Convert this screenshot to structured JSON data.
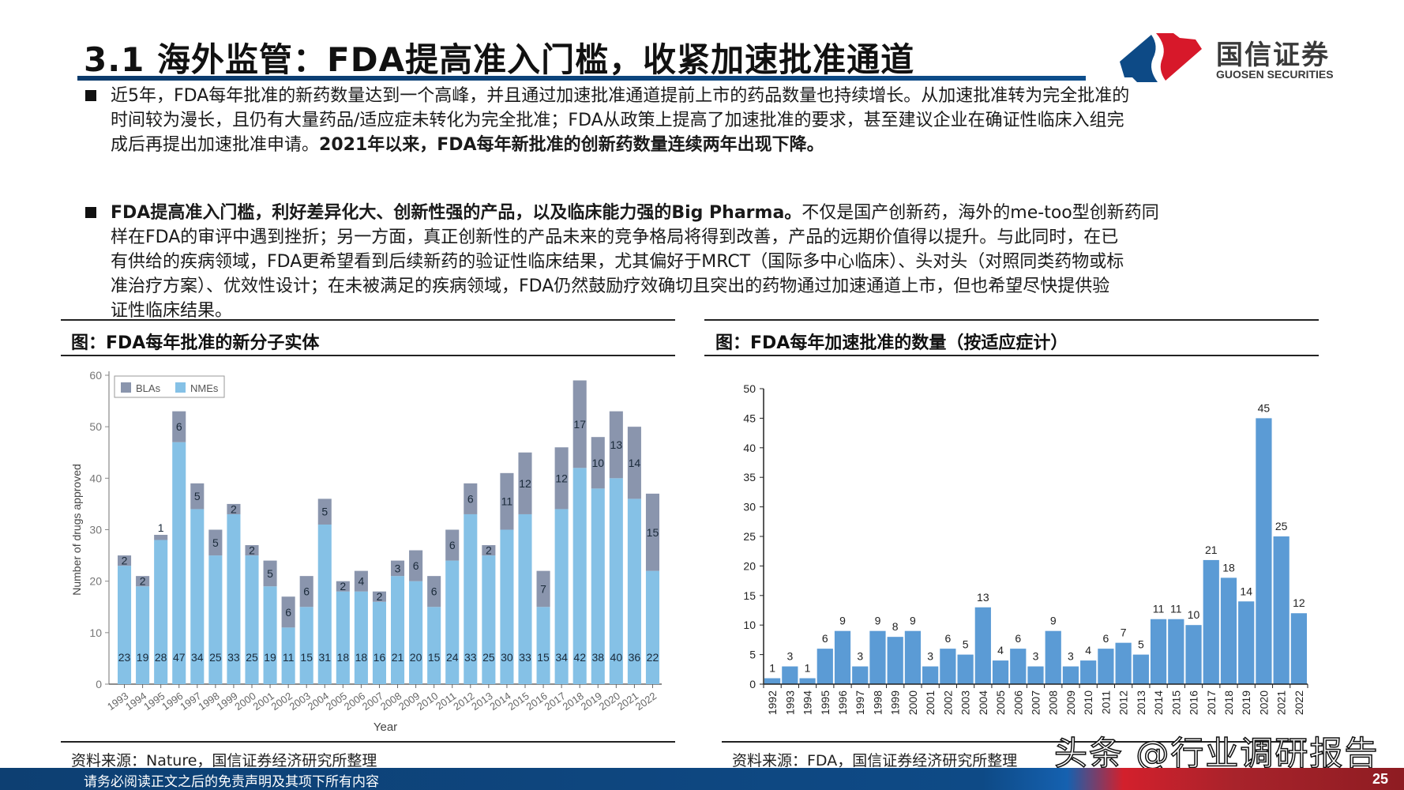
{
  "header": {
    "title": "3.1 海外监管：FDA提高准入门槛，收紧加速批准通道",
    "logo_cn": "国信证券",
    "logo_en": "GUOSEN SECURITIES"
  },
  "paragraphs": [
    {
      "lines": [
        "近5年，FDA每年批准的新药数量达到一个高峰，并且通过加速批准通道提前上市的药品数量也持续增长。从加速批准转为完全批准的",
        "时间较为漫长，且仍有大量药品/适应症未转化为完全批准；FDA从政策上提高了加速批准的要求，甚至建议企业在确证性临床入组完",
        "成后再提出加速批准申请。"
      ],
      "bold_tail": "2021年以来，FDA每年新批准的创新药数量连续两年出现下降。"
    },
    {
      "bold_head": "FDA提高准入门槛，利好差异化大、创新性强的产品，以及临床能力强的Big Pharma。",
      "lines": [
        "不仅是国产创新药，海外的me-too型创新药同",
        "样在FDA的审评中遇到挫折；另一方面，真正创新性的产品未来的竞争格局将得到改善，产品的远期价值得以提升。与此同时，在已",
        "有供给的疾病领域，FDA更希望看到后续新药的验证性临床结果，尤其偏好于MRCT（国际多中心临床）、头对头（对照同类药物或标",
        "准治疗方案）、优效性设计；在未被满足的疾病领域，FDA仍然鼓励疗效确切且突出的药物通过加速通道上市，但也希望尽快提供验",
        "证性临床结果。"
      ]
    }
  ],
  "figures": {
    "left": {
      "title": "图：FDA每年批准的新分子实体",
      "source": "资料来源：Nature，国信证券经济研究所整理"
    },
    "right": {
      "title": "图：FDA每年加速批准的数量（按适应症计）",
      "source": "资料来源：FDA，国信证券经济研究所整理"
    }
  },
  "chart_data": [
    {
      "type": "bar",
      "stacked": true,
      "title": "图：FDA每年批准的新分子实体",
      "xlabel": "Year",
      "ylabel": "Number of drugs approved",
      "ylim": [
        0,
        60
      ],
      "yticks": [
        0,
        10,
        20,
        30,
        40,
        50,
        60
      ],
      "legend": [
        "BLAs",
        "NMEs"
      ],
      "legend_position": "top-left",
      "colors": {
        "BLAs": "#8a95ad",
        "NMEs": "#85c1e6"
      },
      "categories": [
        "1993",
        "1994",
        "1995",
        "1996",
        "1997",
        "1998",
        "1999",
        "2000",
        "2001",
        "2002",
        "2003",
        "2004",
        "2005",
        "2006",
        "2007",
        "2008",
        "2009",
        "2010",
        "2011",
        "2012",
        "2013",
        "2014",
        "2015",
        "2016",
        "2017",
        "2018",
        "2019",
        "2020",
        "2021",
        "2022"
      ],
      "series": [
        {
          "name": "NMEs",
          "values": [
            23,
            19,
            28,
            47,
            34,
            25,
            33,
            25,
            19,
            11,
            15,
            31,
            18,
            18,
            16,
            21,
            20,
            15,
            24,
            33,
            25,
            30,
            33,
            15,
            34,
            42,
            38,
            40,
            36,
            22
          ]
        },
        {
          "name": "BLAs",
          "values": [
            2,
            2,
            1,
            6,
            5,
            5,
            2,
            2,
            5,
            6,
            6,
            5,
            2,
            4,
            2,
            3,
            6,
            6,
            6,
            6,
            2,
            11,
            12,
            7,
            12,
            17,
            10,
            13,
            14,
            15
          ]
        }
      ]
    },
    {
      "type": "bar",
      "title": "图：FDA每年加速批准的数量（按适应症计）",
      "xlabel": "",
      "ylabel": "",
      "ylim": [
        0,
        50
      ],
      "yticks": [
        0,
        5,
        10,
        15,
        20,
        25,
        30,
        35,
        40,
        45,
        50
      ],
      "color": "#5b9bd5",
      "categories": [
        "1992",
        "1993",
        "1994",
        "1995",
        "1996",
        "1997",
        "1998",
        "1999",
        "2000",
        "2001",
        "2002",
        "2003",
        "2004",
        "2005",
        "2006",
        "2007",
        "2008",
        "2009",
        "2010",
        "2011",
        "2012",
        "2013",
        "2014",
        "2015",
        "2016",
        "2017",
        "2018",
        "2019",
        "2020",
        "2021",
        "2022"
      ],
      "values": [
        1,
        3,
        1,
        6,
        9,
        3,
        9,
        8,
        9,
        3,
        6,
        5,
        13,
        4,
        6,
        3,
        9,
        3,
        4,
        6,
        7,
        5,
        11,
        11,
        10,
        21,
        18,
        14,
        45,
        25,
        12
      ]
    }
  ],
  "footer": {
    "disclaimer": "请务必阅读正文之后的免责声明及其项下所有内容",
    "page_number": "25"
  },
  "watermark": "头条 @行业调研报告"
}
